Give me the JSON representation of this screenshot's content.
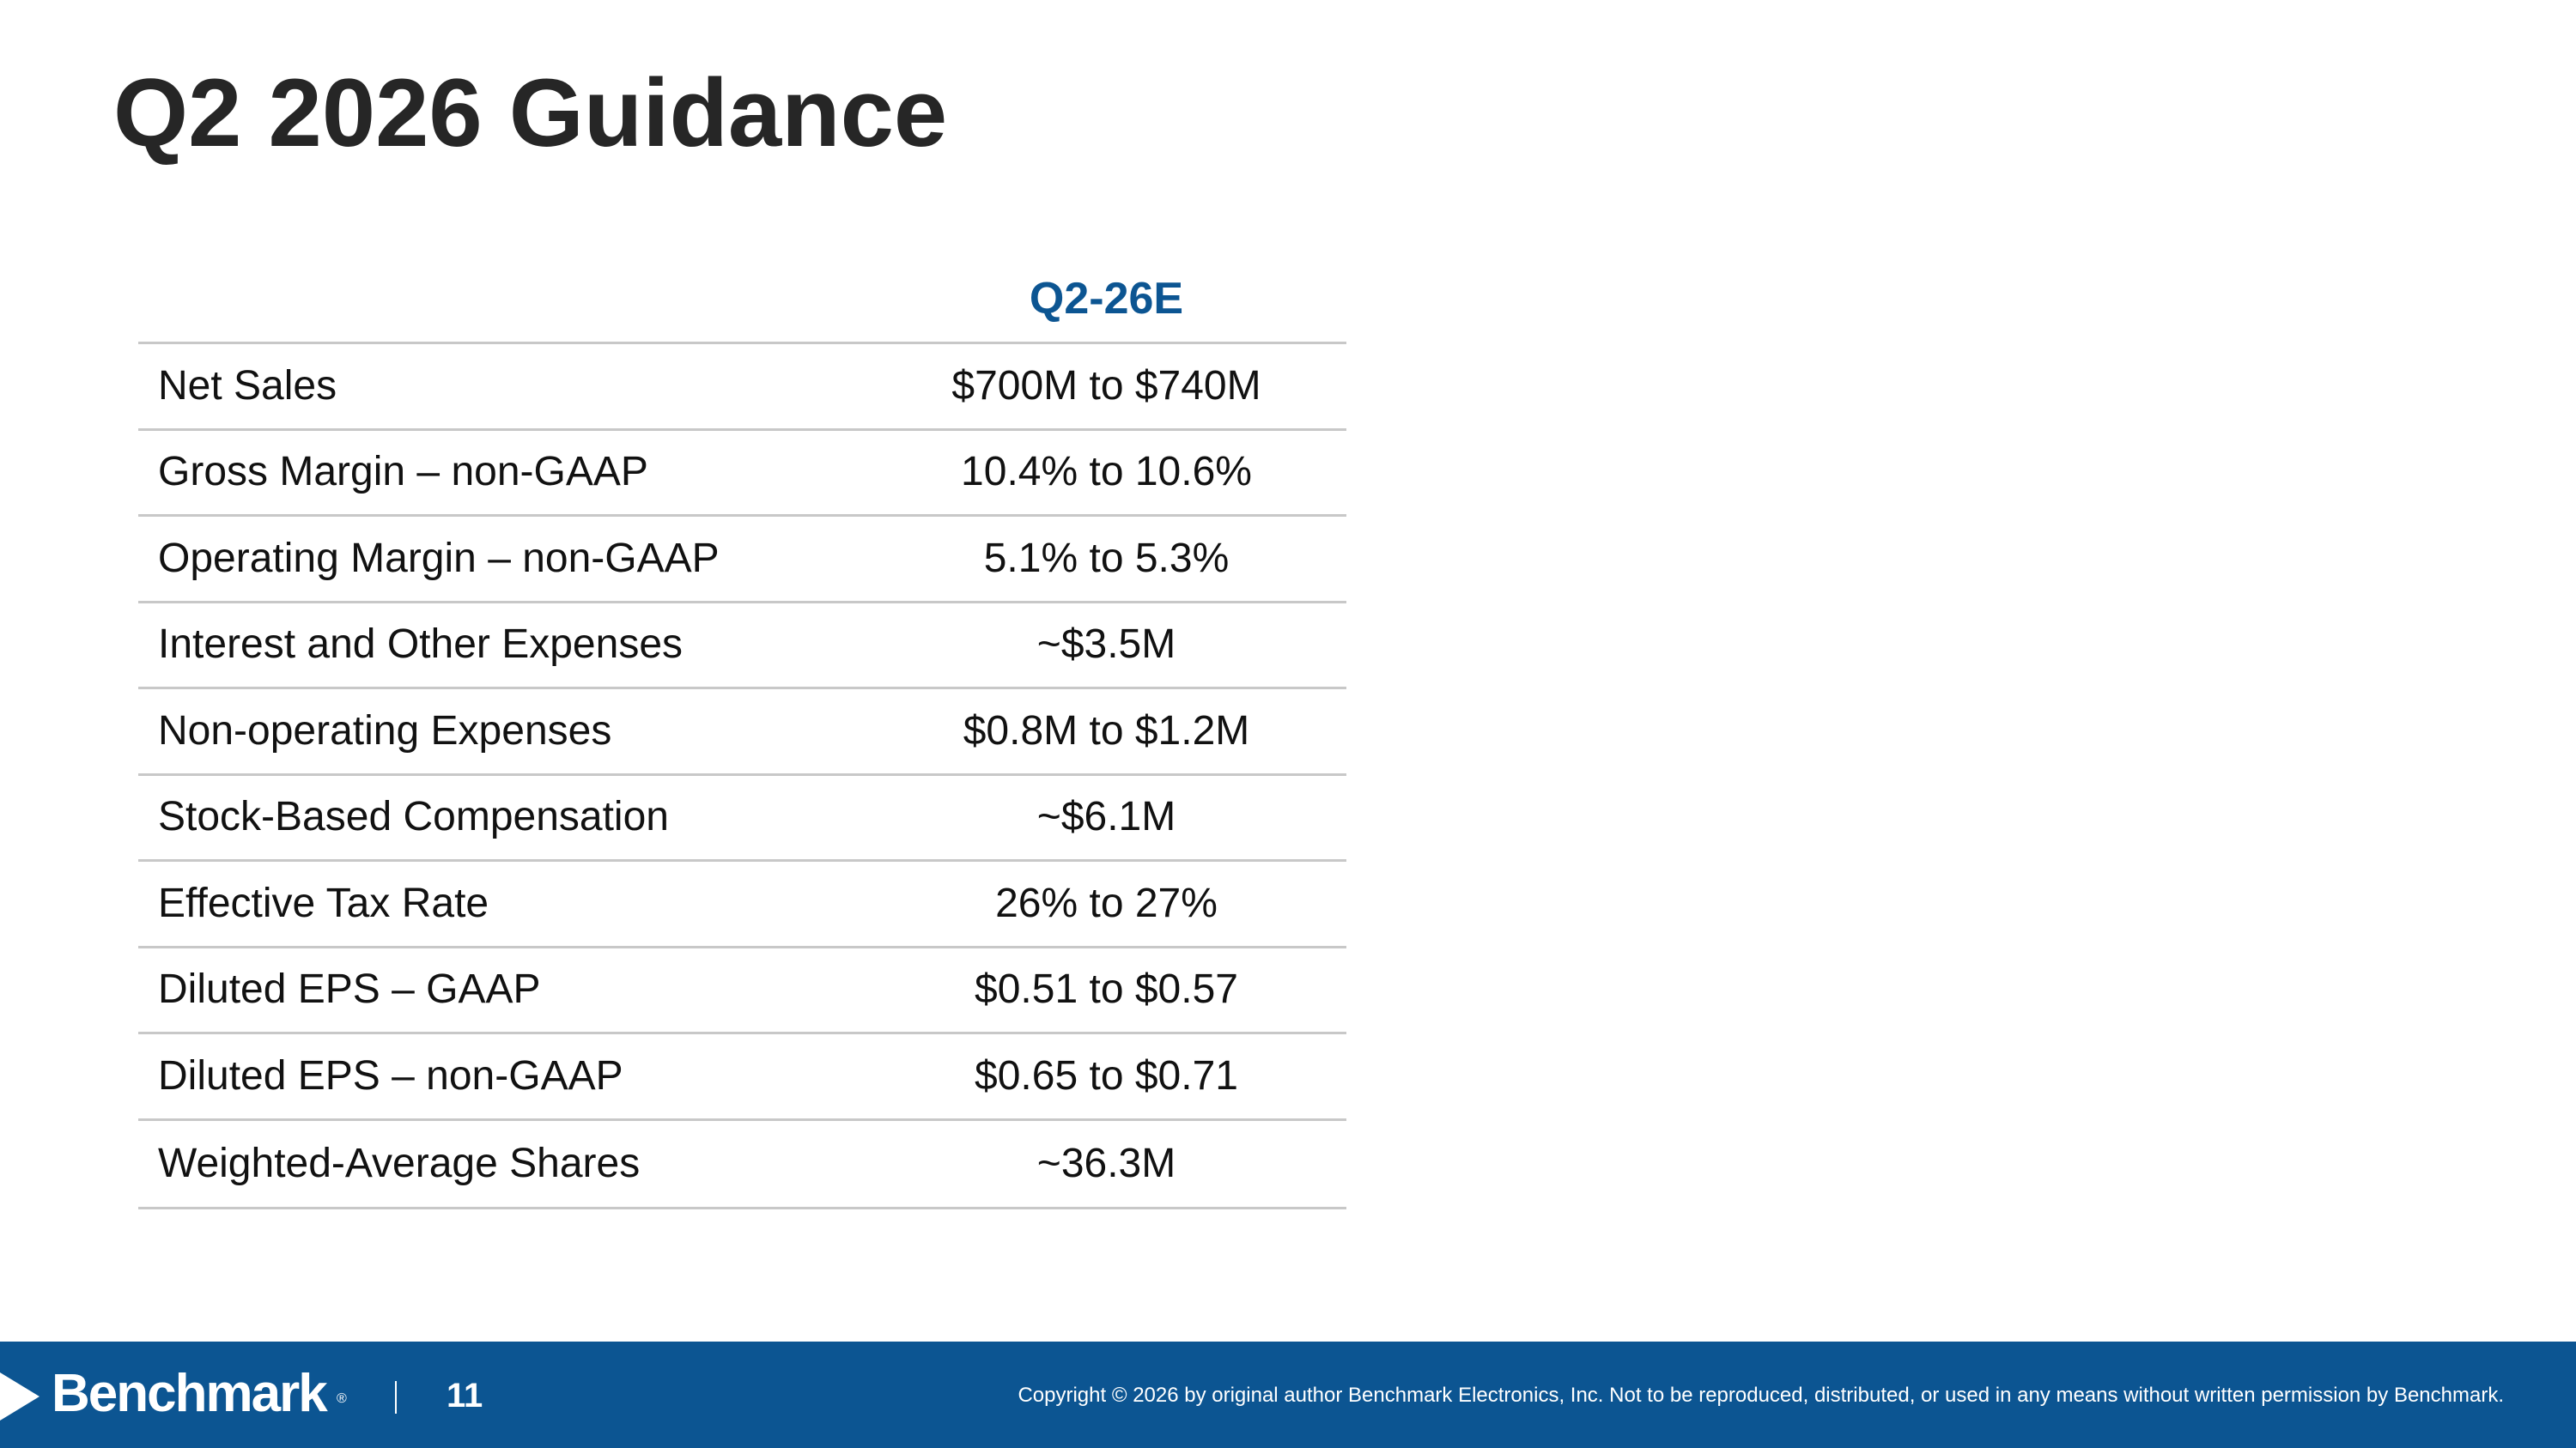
{
  "slide": {
    "title": "Q2 2026 Guidance"
  },
  "table": {
    "column_header": "Q2-26E",
    "rows": [
      {
        "label": "Net Sales",
        "value": "$700M to $740M"
      },
      {
        "label": "Gross Margin – non-GAAP",
        "value": "10.4% to 10.6%"
      },
      {
        "label": "Operating Margin – non-GAAP",
        "value": "5.1% to 5.3%"
      },
      {
        "label": "Interest and Other Expenses",
        "value": "~$3.5M"
      },
      {
        "label": "Non-operating Expenses",
        "value": "$0.8M to $1.2M"
      },
      {
        "label": "Stock-Based Compensation",
        "value": "~$6.1M"
      },
      {
        "label": "Effective Tax Rate",
        "value": "26% to 27%"
      },
      {
        "label": "Diluted EPS – GAAP",
        "value": "$0.51 to $0.57"
      },
      {
        "label": "Diluted EPS – non-GAAP",
        "value": "$0.65 to $0.71"
      },
      {
        "label": "Weighted-Average Shares",
        "value": "~36.3M"
      }
    ]
  },
  "footer": {
    "logo_text": "Benchmark",
    "logo_mark": "®",
    "separator": "|",
    "page_number": "11",
    "copyright": "Copyright © 2026 by original author Benchmark Electronics, Inc. Not to be reproduced, distributed, or used in any means without written permission by Benchmark."
  },
  "colors": {
    "brand_blue": "#0c5592",
    "title_text": "#262626",
    "row_rule": "#c8c8c8"
  }
}
